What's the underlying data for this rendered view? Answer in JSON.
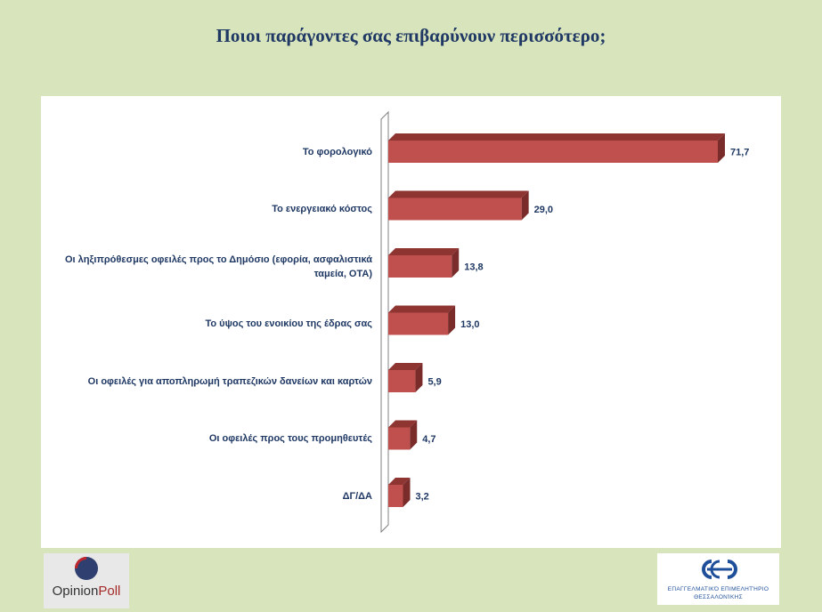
{
  "page": {
    "title": "Ποιοι παράγοντες σας επιβαρύνουν περισσότερο;"
  },
  "chart_data": {
    "type": "bar",
    "orientation": "horizontal",
    "style": "3d",
    "title": "Ποιοι παράγοντες σας επιβαρύνουν περισσότερο;",
    "categories": [
      "Το φορολογικό",
      "Το ενεργειακό κόστος",
      "Οι ληξιπρόθεσμες οφειλές προς το Δημόσιο (εφορία, ασφαλιστικά ταμεία, ΟΤΑ)",
      "Το ύψος του ενοικίου της έδρας σας",
      "Οι οφειλές για αποπληρωμή τραπεζικών δανείων και καρτών",
      "Οι οφειλές προς τους προμηθευτές",
      "ΔΓ/ΔΑ"
    ],
    "values": [
      71.7,
      29.0,
      13.8,
      13.0,
      5.9,
      4.7,
      3.2
    ],
    "value_labels": [
      "71,7",
      "29,0",
      "13,8",
      "13,0",
      "5,9",
      "4,7",
      "3,2"
    ],
    "xlim": [
      0,
      71.7
    ],
    "grid": false,
    "legend": "none",
    "colors": {
      "bar_front": "#c0504d",
      "bar_top": "#8e3532",
      "bar_side": "#7a2c2a",
      "label_text": "#1f3864",
      "background": "#d8e4bc"
    }
  },
  "logos": {
    "left": {
      "text_part1": "Opinion",
      "text_part2": "Poll"
    },
    "right": {
      "line1": "Επαγγελματικό Επιμελητήριο",
      "line2": "Θεσσαλονίκης"
    }
  }
}
